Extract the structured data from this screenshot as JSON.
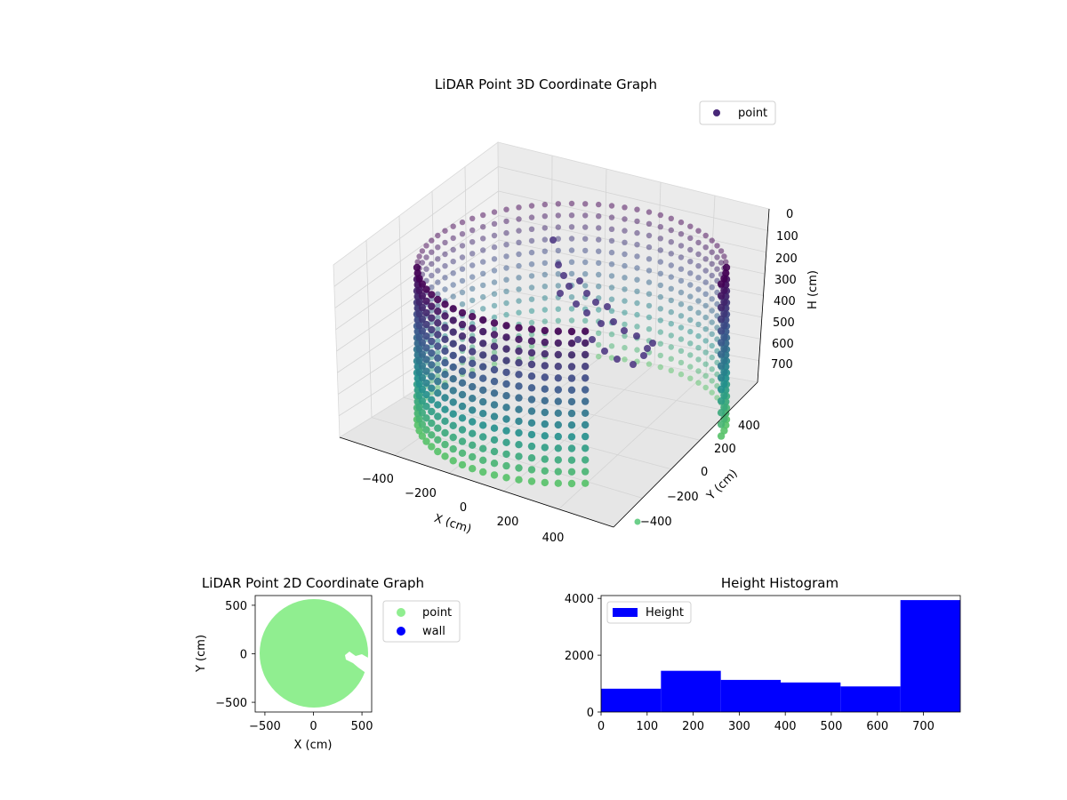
{
  "chart_data": [
    {
      "type": "scatter",
      "title": "LiDAR Point 3D Coordinate Graph",
      "xlabel": "X (cm)",
      "ylabel": "Y (cm)",
      "zlabel": "H (cm)",
      "xticks": [
        "−400",
        "−200",
        "0",
        "200",
        "400"
      ],
      "yticks": [
        "400",
        "200",
        "0",
        "−200",
        "−400"
      ],
      "zticks": [
        "0",
        "100",
        "200",
        "300",
        "400",
        "500",
        "600",
        "700"
      ],
      "zlim": [
        0,
        780
      ],
      "z_inverted": true,
      "legend": {
        "label": "point",
        "location": "top-right",
        "color": "#482878"
      },
      "colormap": [
        "#440154",
        "#3b528b",
        "#21918c",
        "#5ec962"
      ],
      "shape": "cylindrical wall of points, radius about 560 cm, heights 0–780 cm"
    },
    {
      "type": "scatter",
      "title": "LiDAR Point 2D Coordinate Graph",
      "xlabel": "X (cm)",
      "ylabel": "Y (cm)",
      "xlim": [
        -600,
        600
      ],
      "ylim": [
        -600,
        600
      ],
      "xticks": [
        -500,
        0,
        500
      ],
      "yticks": [
        -500,
        0,
        500
      ],
      "series": [
        {
          "name": "point",
          "color": "#90ee90",
          "center": [
            0,
            0
          ],
          "radius": 560
        },
        {
          "name": "wall",
          "color": "#0000ff"
        }
      ],
      "legend": {
        "location": "outside-right"
      }
    },
    {
      "type": "bar",
      "title": "Height Histogram",
      "xlabel": "",
      "ylabel": "",
      "xlim": [
        0,
        780
      ],
      "ylim": [
        0,
        4100
      ],
      "xticks": [
        0,
        100,
        200,
        300,
        400,
        500,
        600,
        700
      ],
      "yticks": [
        0,
        2000,
        4000
      ],
      "bin_edges": [
        0,
        130,
        260,
        390,
        520,
        650,
        780
      ],
      "values": [
        820,
        1450,
        1130,
        1040,
        900,
        3940
      ],
      "series": [
        {
          "name": "Height",
          "color": "#0000ff"
        }
      ],
      "legend": {
        "location": "top-left"
      }
    }
  ]
}
